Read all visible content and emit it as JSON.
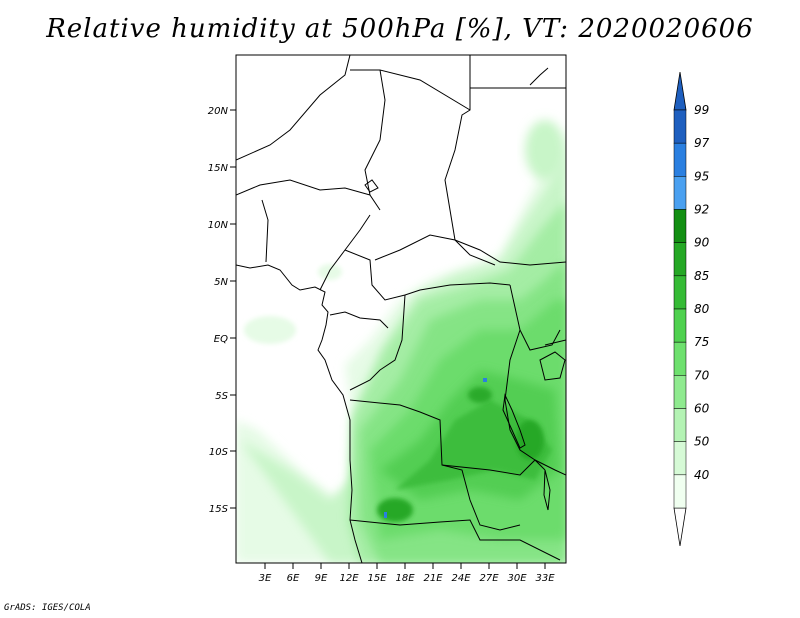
{
  "title": "Relative humidity at 500hPa [%], VT: 2020020606",
  "credit": "GrADS: IGES/COLA",
  "lat_ticks": [
    "20N",
    "15N",
    "10N",
    "5N",
    "EQ",
    "5S",
    "10S",
    "15S"
  ],
  "lon_ticks": [
    "3E",
    "6E",
    "9E",
    "12E",
    "15E",
    "18E",
    "21E",
    "24E",
    "27E",
    "30E",
    "33E"
  ],
  "colorbar": {
    "labels": [
      "99",
      "97",
      "95",
      "92",
      "90",
      "85",
      "80",
      "75",
      "70",
      "60",
      "50",
      "40"
    ],
    "colors": [
      "#1e5fbf",
      "#2a7fe0",
      "#4aa0f0",
      "#138f13",
      "#25a825",
      "#35bb35",
      "#4fd14f",
      "#6ee06e",
      "#8fea8f",
      "#b4f3b4",
      "#d6fad6",
      "#f0fff0"
    ]
  },
  "land_color": "#ffffff",
  "water_color": "#2a7fe0"
}
